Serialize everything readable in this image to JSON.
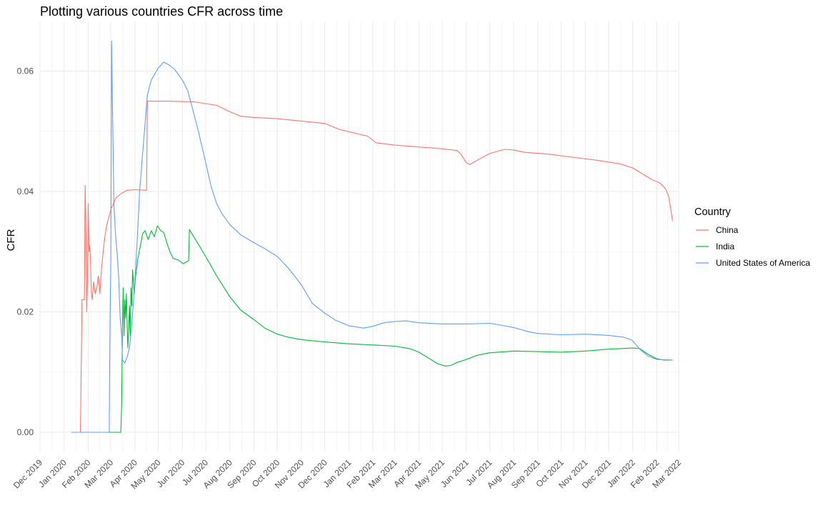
{
  "chart_data": {
    "type": "line",
    "title": "Plotting various countries CFR across time",
    "xlabel": "",
    "ylabel": "CFR",
    "x_type": "date",
    "xlim": [
      "2019-12-01",
      "2022-03-01"
    ],
    "ylim": [
      -0.0035,
      0.065
    ],
    "y_ticks": [
      0,
      0.02,
      0.04,
      0.06
    ],
    "y_tick_labels": [
      "0.00",
      "0.02",
      "0.04",
      "0.06"
    ],
    "x_ticks": [
      "2019-12-01",
      "2020-01-01",
      "2020-02-01",
      "2020-03-01",
      "2020-04-01",
      "2020-05-01",
      "2020-06-01",
      "2020-07-01",
      "2020-08-01",
      "2020-09-01",
      "2020-10-01",
      "2020-11-01",
      "2020-12-01",
      "2021-01-01",
      "2021-02-01",
      "2021-03-01",
      "2021-04-01",
      "2021-05-01",
      "2021-06-01",
      "2021-07-01",
      "2021-08-01",
      "2021-09-01",
      "2021-10-01",
      "2021-11-01",
      "2021-12-01",
      "2022-01-01",
      "2022-02-01",
      "2022-03-01"
    ],
    "x_tick_labels": [
      "Dec 2019",
      "Jan 2020",
      "Feb 2020",
      "Mar 2020",
      "Apr 2020",
      "May 2020",
      "Jun 2020",
      "Jul 2020",
      "Aug 2020",
      "Sep 2020",
      "Oct 2020",
      "Nov 2020",
      "Dec 2020",
      "Jan 2021",
      "Feb 2021",
      "Mar 2021",
      "Apr 2021",
      "May 2021",
      "Jun 2021",
      "Jul 2021",
      "Aug 2021",
      "Sep 2021",
      "Oct 2021",
      "Nov 2021",
      "Dec 2021",
      "Jan 2022",
      "Feb 2022",
      "Mar 2022"
    ],
    "grid": true,
    "legend": {
      "title": "Country",
      "position": "right"
    },
    "series": [
      {
        "name": "China",
        "color": "#F8766D",
        "points": [
          [
            "2020-01-10",
            0
          ],
          [
            "2020-01-22",
            0
          ],
          [
            "2020-01-23",
            0.011
          ],
          [
            "2020-01-24",
            0.022
          ],
          [
            "2020-01-26",
            0.022
          ],
          [
            "2020-01-27",
            0.022
          ],
          [
            "2020-01-28",
            0.041
          ],
          [
            "2020-01-29",
            0.035
          ],
          [
            "2020-01-30",
            0.02
          ],
          [
            "2020-01-31",
            0.025
          ],
          [
            "2020-02-01",
            0.038
          ],
          [
            "2020-02-02",
            0.03
          ],
          [
            "2020-02-03",
            0.031
          ],
          [
            "2020-02-04",
            0.028
          ],
          [
            "2020-02-05",
            0.023
          ],
          [
            "2020-02-06",
            0.022
          ],
          [
            "2020-02-08",
            0.025
          ],
          [
            "2020-02-10",
            0.023
          ],
          [
            "2020-02-12",
            0.024
          ],
          [
            "2020-02-14",
            0.026
          ],
          [
            "2020-02-16",
            0.023
          ],
          [
            "2020-02-18",
            0.027
          ],
          [
            "2020-02-21",
            0.031
          ],
          [
            "2020-02-24",
            0.034
          ],
          [
            "2020-03-01",
            0.037
          ],
          [
            "2020-03-08",
            0.039
          ],
          [
            "2020-03-15",
            0.0397
          ],
          [
            "2020-03-22",
            0.0402
          ],
          [
            "2020-04-01",
            0.0403
          ],
          [
            "2020-04-16",
            0.0402
          ],
          [
            "2020-04-17",
            0.055
          ],
          [
            "2020-05-15",
            0.055
          ],
          [
            "2020-06-15",
            0.0549
          ],
          [
            "2020-07-01",
            0.0546
          ],
          [
            "2020-07-15",
            0.0543
          ],
          [
            "2020-07-31",
            0.0533
          ],
          [
            "2020-08-15",
            0.0525
          ],
          [
            "2020-09-01",
            0.0523
          ],
          [
            "2020-10-01",
            0.0521
          ],
          [
            "2020-11-01",
            0.0517
          ],
          [
            "2020-12-01",
            0.0513
          ],
          [
            "2020-12-20",
            0.0503
          ],
          [
            "2021-01-15",
            0.0495
          ],
          [
            "2021-01-25",
            0.0492
          ],
          [
            "2021-02-05",
            0.0481
          ],
          [
            "2021-03-01",
            0.0477
          ],
          [
            "2021-04-01",
            0.0474
          ],
          [
            "2021-05-01",
            0.0471
          ],
          [
            "2021-05-20",
            0.0468
          ],
          [
            "2021-05-25",
            0.0462
          ],
          [
            "2021-06-01",
            0.0448
          ],
          [
            "2021-06-06",
            0.0445
          ],
          [
            "2021-06-15",
            0.0452
          ],
          [
            "2021-07-01",
            0.0463
          ],
          [
            "2021-07-20",
            0.047
          ],
          [
            "2021-08-01",
            0.0469
          ],
          [
            "2021-08-15",
            0.0465
          ],
          [
            "2021-09-15",
            0.0462
          ],
          [
            "2021-10-15",
            0.0457
          ],
          [
            "2021-11-15",
            0.0452
          ],
          [
            "2021-12-15",
            0.0446
          ],
          [
            "2022-01-01",
            0.0439
          ],
          [
            "2022-01-15",
            0.0428
          ],
          [
            "2022-01-25",
            0.042
          ],
          [
            "2022-02-05",
            0.0414
          ],
          [
            "2022-02-12",
            0.0405
          ],
          [
            "2022-02-16",
            0.0393
          ],
          [
            "2022-02-19",
            0.037
          ],
          [
            "2022-02-21",
            0.0351
          ]
        ]
      },
      {
        "name": "India",
        "color": "#00BA38",
        "points": [
          [
            "2020-01-10",
            0
          ],
          [
            "2020-03-14",
            0
          ],
          [
            "2020-03-15",
            0.005
          ],
          [
            "2020-03-16",
            0.018
          ],
          [
            "2020-03-17",
            0.024
          ],
          [
            "2020-03-18",
            0.016
          ],
          [
            "2020-03-19",
            0.022
          ],
          [
            "2020-03-20",
            0.019
          ],
          [
            "2020-03-21",
            0.023
          ],
          [
            "2020-03-22",
            0.018
          ],
          [
            "2020-03-23",
            0.014
          ],
          [
            "2020-03-24",
            0.017
          ],
          [
            "2020-03-25",
            0.021
          ],
          [
            "2020-03-26",
            0.016
          ],
          [
            "2020-03-27",
            0.024
          ],
          [
            "2020-03-28",
            0.021
          ],
          [
            "2020-03-29",
            0.027
          ],
          [
            "2020-03-31",
            0.023
          ],
          [
            "2020-04-02",
            0.026
          ],
          [
            "2020-04-05",
            0.029
          ],
          [
            "2020-04-08",
            0.031
          ],
          [
            "2020-04-11",
            0.033
          ],
          [
            "2020-04-14",
            0.0335
          ],
          [
            "2020-04-18",
            0.032
          ],
          [
            "2020-04-22",
            0.0335
          ],
          [
            "2020-04-26",
            0.0325
          ],
          [
            "2020-04-30",
            0.0343
          ],
          [
            "2020-05-04",
            0.0335
          ],
          [
            "2020-05-08",
            0.0332
          ],
          [
            "2020-05-12",
            0.0315
          ],
          [
            "2020-05-16",
            0.03
          ],
          [
            "2020-05-20",
            0.0289
          ],
          [
            "2020-05-27",
            0.0286
          ],
          [
            "2020-06-02",
            0.028
          ],
          [
            "2020-06-09",
            0.0285
          ],
          [
            "2020-06-10",
            0.0337
          ],
          [
            "2020-06-15",
            0.0326
          ],
          [
            "2020-06-25",
            0.0305
          ],
          [
            "2020-07-05",
            0.0283
          ],
          [
            "2020-07-15",
            0.026
          ],
          [
            "2020-08-01",
            0.0225
          ],
          [
            "2020-08-15",
            0.0203
          ],
          [
            "2020-09-01",
            0.0187
          ],
          [
            "2020-09-15",
            0.0173
          ],
          [
            "2020-10-01",
            0.0163
          ],
          [
            "2020-10-15",
            0.0158
          ],
          [
            "2020-11-01",
            0.0154
          ],
          [
            "2020-12-01",
            0.015
          ],
          [
            "2021-01-01",
            0.0147
          ],
          [
            "2021-02-01",
            0.0145
          ],
          [
            "2021-03-01",
            0.0143
          ],
          [
            "2021-03-20",
            0.0139
          ],
          [
            "2021-04-01",
            0.0133
          ],
          [
            "2021-04-15",
            0.0122
          ],
          [
            "2021-04-25",
            0.0114
          ],
          [
            "2021-05-05",
            0.011
          ],
          [
            "2021-05-12",
            0.0111
          ],
          [
            "2021-05-20",
            0.0116
          ],
          [
            "2021-06-01",
            0.0121
          ],
          [
            "2021-06-15",
            0.0128
          ],
          [
            "2021-07-01",
            0.0132
          ],
          [
            "2021-08-01",
            0.0135
          ],
          [
            "2021-09-01",
            0.0134
          ],
          [
            "2021-10-01",
            0.0133
          ],
          [
            "2021-11-01",
            0.0135
          ],
          [
            "2021-12-01",
            0.0138
          ],
          [
            "2022-01-01",
            0.014
          ],
          [
            "2022-01-10",
            0.0139
          ],
          [
            "2022-01-20",
            0.013
          ],
          [
            "2022-02-01",
            0.0122
          ],
          [
            "2022-02-10",
            0.012
          ],
          [
            "2022-02-21",
            0.012
          ]
        ]
      },
      {
        "name": "United States of America",
        "color": "#619CFF",
        "points": [
          [
            "2020-01-10",
            0
          ],
          [
            "2020-02-28",
            0
          ],
          [
            "2020-02-29",
            0.018
          ],
          [
            "2020-03-01",
            0.028
          ],
          [
            "2020-03-02",
            0.065
          ],
          [
            "2020-03-03",
            0.055
          ],
          [
            "2020-03-04",
            0.047
          ],
          [
            "2020-03-05",
            0.038
          ],
          [
            "2020-03-07",
            0.033
          ],
          [
            "2020-03-09",
            0.03
          ],
          [
            "2020-03-11",
            0.026
          ],
          [
            "2020-03-13",
            0.019
          ],
          [
            "2020-03-15",
            0.016
          ],
          [
            "2020-03-16",
            0.012
          ],
          [
            "2020-03-19",
            0.0115
          ],
          [
            "2020-03-22",
            0.0125
          ],
          [
            "2020-03-25",
            0.014
          ],
          [
            "2020-03-28",
            0.018
          ],
          [
            "2020-04-01",
            0.025
          ],
          [
            "2020-04-04",
            0.032
          ],
          [
            "2020-04-07",
            0.04
          ],
          [
            "2020-04-12",
            0.048
          ],
          [
            "2020-04-17",
            0.056
          ],
          [
            "2020-04-22",
            0.0585
          ],
          [
            "2020-05-01",
            0.0605
          ],
          [
            "2020-05-08",
            0.0615
          ],
          [
            "2020-05-15",
            0.061
          ],
          [
            "2020-05-22",
            0.0603
          ],
          [
            "2020-06-01",
            0.0585
          ],
          [
            "2020-06-08",
            0.0567
          ],
          [
            "2020-06-15",
            0.0533
          ],
          [
            "2020-06-22",
            0.0498
          ],
          [
            "2020-07-01",
            0.0448
          ],
          [
            "2020-07-08",
            0.0408
          ],
          [
            "2020-07-15",
            0.038
          ],
          [
            "2020-07-22",
            0.0363
          ],
          [
            "2020-08-01",
            0.0345
          ],
          [
            "2020-08-15",
            0.0328
          ],
          [
            "2020-09-01",
            0.0315
          ],
          [
            "2020-09-15",
            0.0305
          ],
          [
            "2020-10-01",
            0.0292
          ],
          [
            "2020-10-15",
            0.0273
          ],
          [
            "2020-11-01",
            0.0245
          ],
          [
            "2020-11-15",
            0.0214
          ],
          [
            "2020-12-01",
            0.0198
          ],
          [
            "2020-12-15",
            0.0186
          ],
          [
            "2021-01-01",
            0.0177
          ],
          [
            "2021-01-20",
            0.0173
          ],
          [
            "2021-02-01",
            0.0176
          ],
          [
            "2021-02-15",
            0.0182
          ],
          [
            "2021-03-01",
            0.0184
          ],
          [
            "2021-03-15",
            0.0185
          ],
          [
            "2021-04-01",
            0.0182
          ],
          [
            "2021-05-01",
            0.018
          ],
          [
            "2021-06-01",
            0.018
          ],
          [
            "2021-07-01",
            0.0181
          ],
          [
            "2021-07-15",
            0.0178
          ],
          [
            "2021-08-01",
            0.0174
          ],
          [
            "2021-08-20",
            0.0167
          ],
          [
            "2021-09-01",
            0.0164
          ],
          [
            "2021-10-01",
            0.0162
          ],
          [
            "2021-11-01",
            0.0163
          ],
          [
            "2021-12-01",
            0.0161
          ],
          [
            "2021-12-20",
            0.0158
          ],
          [
            "2021-12-31",
            0.0153
          ],
          [
            "2022-01-10",
            0.0138
          ],
          [
            "2022-01-20",
            0.0127
          ],
          [
            "2022-02-01",
            0.0121
          ],
          [
            "2022-02-21",
            0.012
          ]
        ]
      }
    ]
  }
}
